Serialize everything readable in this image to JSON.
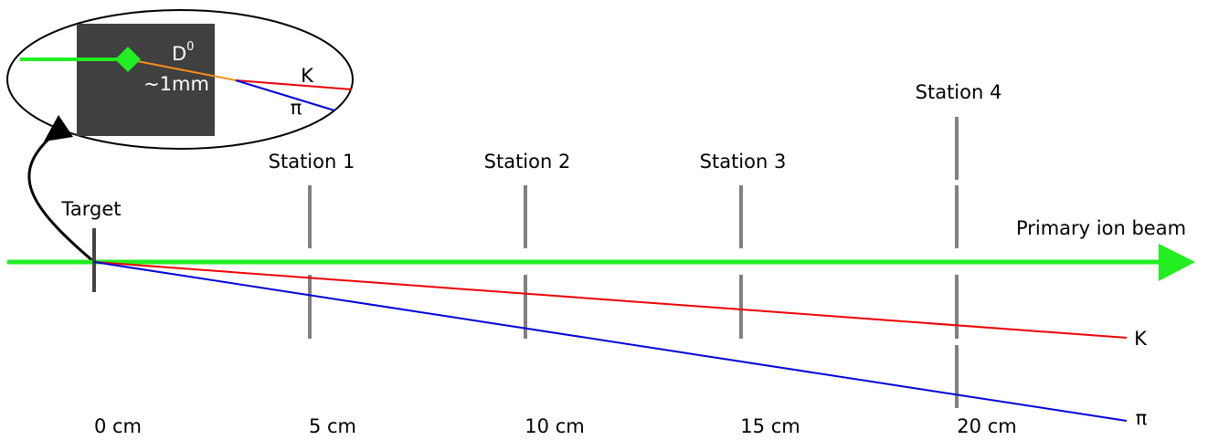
{
  "labels": {
    "target": "Target",
    "beam": "Primary ion beam",
    "kaon": "K",
    "pion": "π"
  },
  "stations": [
    "Station 1",
    "Station 2",
    "Station 3",
    "Station 4"
  ],
  "distances": [
    "0 cm",
    "5 cm",
    "10 cm",
    "15 cm",
    "20 cm"
  ],
  "inset": {
    "particle": "D",
    "superscript": "0",
    "decay_length": "~1mm",
    "kaon": "K",
    "pion": "π"
  }
}
